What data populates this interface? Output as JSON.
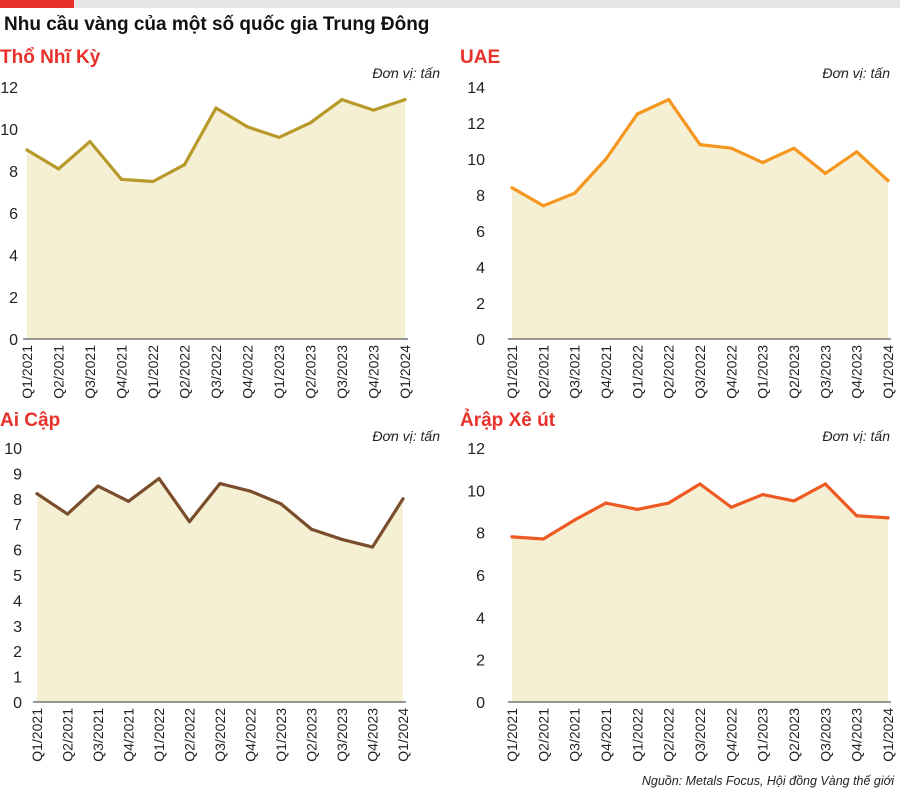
{
  "header": {
    "title": "Nhu cầu vàng của một số quốc gia Trung Đông"
  },
  "colors": {
    "accent": "#e8312a",
    "fill": "#f5f0d3",
    "axis": "#333333"
  },
  "source": "Nguồn: Metals Focus, Hội đồng Vàng thế giới",
  "chart_data": [
    {
      "type": "area",
      "title": "Thổ Nhĩ Kỳ",
      "unit": "Đơn vị: tấn",
      "title_color": "#e8312a",
      "line_color": "#b89a2a",
      "categories": [
        "Q1/2021",
        "Q2/2021",
        "Q3/2021",
        "Q4/2021",
        "Q1/2022",
        "Q2/2022",
        "Q3/2022",
        "Q4/2022",
        "Q1/2023",
        "Q2/2023",
        "Q3/2023",
        "Q4/2023",
        "Q1/2024"
      ],
      "values": [
        9.0,
        8.1,
        9.4,
        7.6,
        7.5,
        8.3,
        11.0,
        10.1,
        9.6,
        10.3,
        11.4,
        10.9,
        11.4
      ],
      "ylim": [
        0,
        12
      ],
      "yticks": [
        0,
        2,
        4,
        6,
        8,
        10,
        12
      ]
    },
    {
      "type": "area",
      "title": "UAE",
      "unit": "Đơn vị: tấn",
      "title_color": "#e8312a",
      "line_color": "#f5961f",
      "categories": [
        "Q1/2021",
        "Q2/2021",
        "Q3/2021",
        "Q4/2021",
        "Q1/2022",
        "Q2/2022",
        "Q3/2022",
        "Q4/2022",
        "Q1/2023",
        "Q2/2023",
        "Q3/2023",
        "Q4/2023",
        "Q1/2024"
      ],
      "values": [
        8.4,
        7.4,
        8.1,
        10.0,
        12.5,
        13.3,
        10.8,
        10.6,
        9.8,
        10.6,
        9.2,
        10.4,
        8.8
      ],
      "ylim": [
        0,
        14
      ],
      "yticks": [
        0,
        2,
        4,
        6,
        8,
        10,
        12,
        14
      ]
    },
    {
      "type": "area",
      "title": "Ai Cập",
      "unit": "Đơn vị: tấn",
      "title_color": "#e8312a",
      "line_color": "#7a4e2d",
      "categories": [
        "Q1/2021",
        "Q2/2021",
        "Q3/2021",
        "Q4/2021",
        "Q1/2022",
        "Q2/2022",
        "Q3/2022",
        "Q4/2022",
        "Q1/2023",
        "Q2/2023",
        "Q3/2023",
        "Q4/2023",
        "Q1/2024"
      ],
      "values": [
        8.2,
        7.4,
        8.5,
        7.9,
        8.8,
        7.1,
        8.6,
        8.3,
        7.8,
        6.8,
        6.4,
        6.1,
        8.0
      ],
      "ylim": [
        0,
        10
      ],
      "yticks": [
        0,
        1,
        2,
        3,
        4,
        5,
        6,
        7,
        8,
        9,
        10
      ]
    },
    {
      "type": "area",
      "title": "Ảrập Xê út",
      "unit": "Đơn vị: tấn",
      "title_color": "#e8312a",
      "line_color": "#ee5a24",
      "categories": [
        "Q1/2021",
        "Q2/2021",
        "Q3/2021",
        "Q4/2021",
        "Q1/2022",
        "Q2/2022",
        "Q3/2022",
        "Q4/2022",
        "Q1/2023",
        "Q2/2023",
        "Q3/2023",
        "Q4/2023",
        "Q1/2024"
      ],
      "values": [
        7.8,
        7.7,
        8.6,
        9.4,
        9.1,
        9.4,
        10.3,
        9.2,
        9.8,
        9.5,
        10.3,
        8.8,
        8.7
      ],
      "ylim": [
        0,
        12
      ],
      "yticks": [
        0,
        2,
        4,
        6,
        8,
        10,
        12
      ]
    }
  ]
}
